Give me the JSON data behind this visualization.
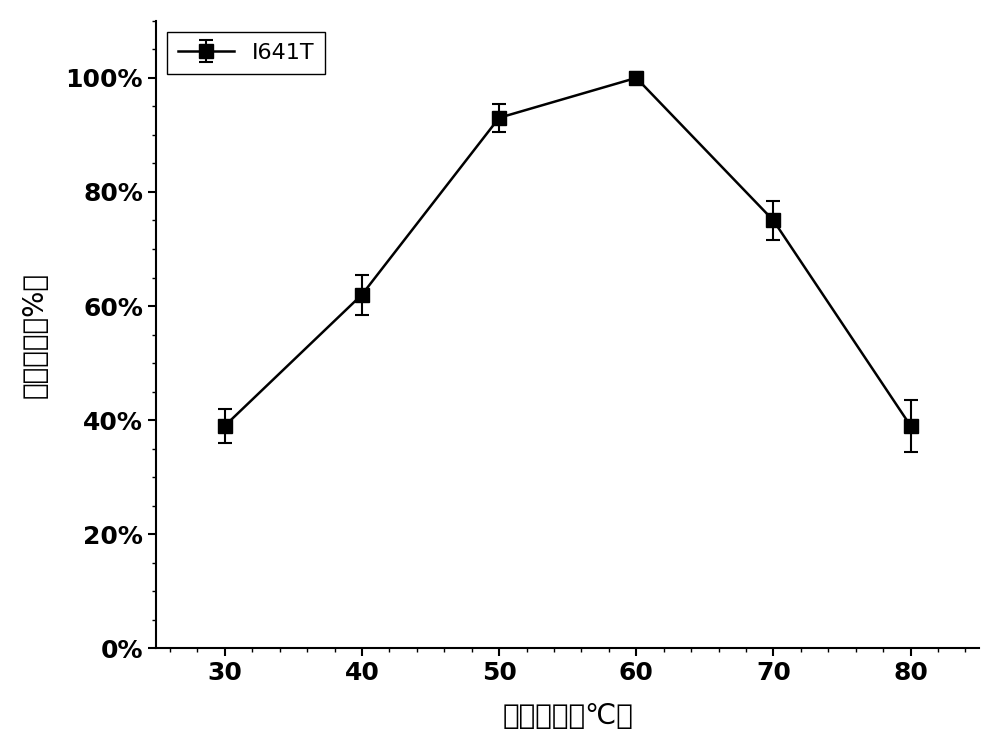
{
  "x": [
    30,
    40,
    50,
    60,
    70,
    80
  ],
  "y": [
    39,
    62,
    93,
    100,
    75,
    39
  ],
  "yerr": [
    3.0,
    3.5,
    2.5,
    1.0,
    3.5,
    4.5
  ],
  "xlabel": "最适温度（℃）",
  "ylabel": "相对酶活（%）",
  "legend_label": "I641T",
  "xlim": [
    25,
    85
  ],
  "ylim": [
    0,
    110
  ],
  "xticks": [
    30,
    40,
    50,
    60,
    70,
    80
  ],
  "yticks": [
    0,
    20,
    40,
    60,
    80,
    100
  ],
  "ytick_labels": [
    "0%",
    "20%",
    "40%",
    "60%",
    "80%",
    "100%"
  ],
  "line_color": "#000000",
  "marker": "s",
  "marker_size": 10,
  "marker_color": "#000000",
  "line_width": 1.8,
  "background_color": "#ffffff",
  "xlabel_fontsize": 20,
  "ylabel_fontsize": 20,
  "tick_fontsize": 18,
  "legend_fontsize": 16
}
